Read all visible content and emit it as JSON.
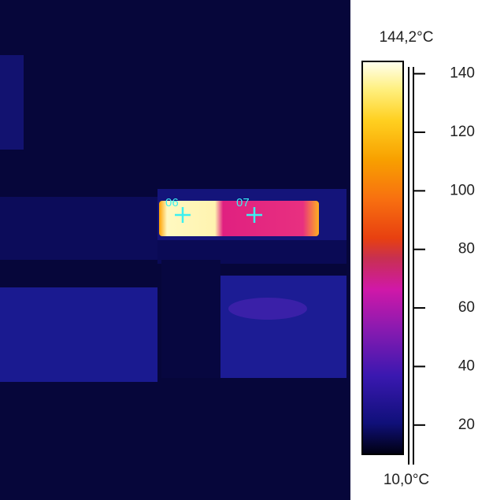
{
  "scale": {
    "max": {
      "value": 144.2,
      "label": "144,2°C"
    },
    "min": {
      "value": 10.0,
      "label": "10,0°C"
    },
    "ticks": [
      20,
      40,
      60,
      80,
      100,
      120,
      140
    ]
  },
  "markers": [
    {
      "label": "06"
    },
    {
      "label": "07"
    }
  ]
}
